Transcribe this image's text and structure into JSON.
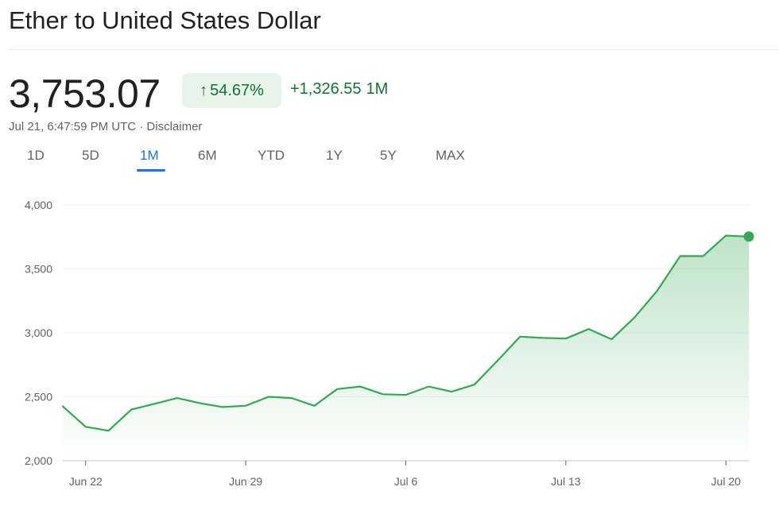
{
  "header": {
    "title": "Ether to United States Dollar",
    "price": "3,753.07",
    "change_pct": "54.67%",
    "change_arrow": "↑",
    "change_abs": "+1,326.55",
    "change_period": "1M",
    "timestamp": "Jul 21, 6:47:59 PM UTC",
    "separator": " · ",
    "disclaimer": "Disclaimer"
  },
  "tabs": [
    {
      "label": "1D",
      "active": false
    },
    {
      "label": "5D",
      "active": false
    },
    {
      "label": "1M",
      "active": true
    },
    {
      "label": "6M",
      "active": false
    },
    {
      "label": "YTD",
      "active": false
    },
    {
      "label": "1Y",
      "active": false
    },
    {
      "label": "5Y",
      "active": false
    },
    {
      "label": "MAX",
      "active": false
    }
  ],
  "colors": {
    "positive": "#137333",
    "positive_bg": "#e6f4ea",
    "line": "#34a853",
    "accent": "#1a73e8",
    "grid": "#f1f3f4",
    "muted_text": "#5f6368"
  },
  "chart_data": {
    "type": "area",
    "x": [
      "Jun 21",
      "Jun 22",
      "Jun 23",
      "Jun 24",
      "Jun 25",
      "Jun 26",
      "Jun 27",
      "Jun 28",
      "Jun 29",
      "Jun 30",
      "Jul 1",
      "Jul 2",
      "Jul 3",
      "Jul 4",
      "Jul 5",
      "Jul 6",
      "Jul 7",
      "Jul 8",
      "Jul 9",
      "Jul 10",
      "Jul 11",
      "Jul 12",
      "Jul 13",
      "Jul 14",
      "Jul 15",
      "Jul 16",
      "Jul 17",
      "Jul 18",
      "Jul 19",
      "Jul 20",
      "Jul 21"
    ],
    "series": [
      {
        "values": [
          2425,
          2265,
          2235,
          2400,
          2445,
          2490,
          2450,
          2420,
          2430,
          2500,
          2490,
          2430,
          2560,
          2580,
          2520,
          2515,
          2580,
          2540,
          2595,
          2780,
          2970,
          2960,
          2955,
          3030,
          2950,
          3120,
          3330,
          3600,
          3600,
          3760,
          3753
        ]
      }
    ],
    "x_ticks": [
      "Jun 22",
      "Jun 29",
      "Jul 6",
      "Jul 13",
      "Jul 20"
    ],
    "y_ticks": [
      "2,000",
      "2,500",
      "3,000",
      "3,500",
      "4,000"
    ],
    "ylim": [
      2000,
      4000
    ],
    "grid": true,
    "title": "",
    "xlabel": "",
    "ylabel": ""
  }
}
